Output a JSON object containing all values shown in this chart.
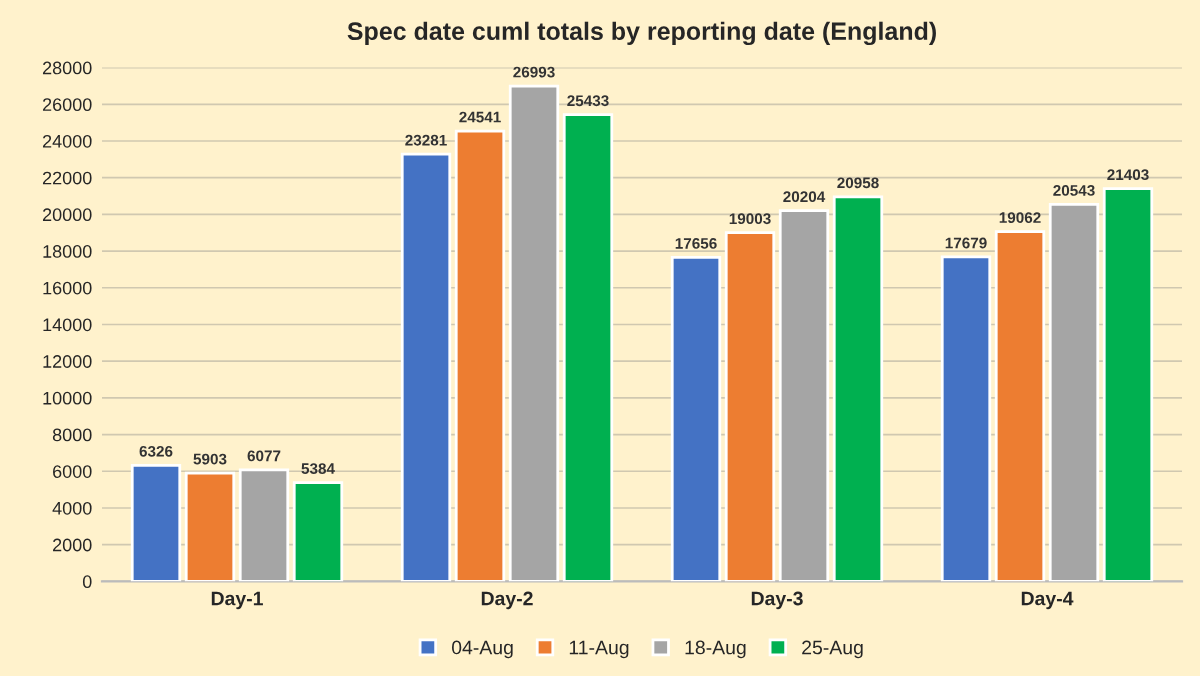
{
  "chart_data": {
    "type": "bar",
    "title": "Spec date cuml totals by reporting date (England)",
    "categories": [
      "Day-1",
      "Day-2",
      "Day-3",
      "Day-4"
    ],
    "series": [
      {
        "name": "04-Aug",
        "color": "#4472c4",
        "values": [
          6326,
          23281,
          17656,
          17679
        ]
      },
      {
        "name": "11-Aug",
        "color": "#ed7d31",
        "values": [
          5903,
          24541,
          19003,
          19062
        ]
      },
      {
        "name": "18-Aug",
        "color": "#a5a5a5",
        "values": [
          6077,
          26993,
          20204,
          20543
        ]
      },
      {
        "name": "25-Aug",
        "color": "#00b050",
        "values": [
          5384,
          25433,
          20958,
          21403
        ]
      }
    ],
    "ylim": [
      0,
      28000
    ],
    "yticks": [
      0,
      2000,
      4000,
      6000,
      8000,
      10000,
      12000,
      14000,
      16000,
      18000,
      20000,
      22000,
      24000,
      26000,
      28000
    ],
    "grid": "y",
    "legend": "bottom",
    "data_labels": true
  }
}
